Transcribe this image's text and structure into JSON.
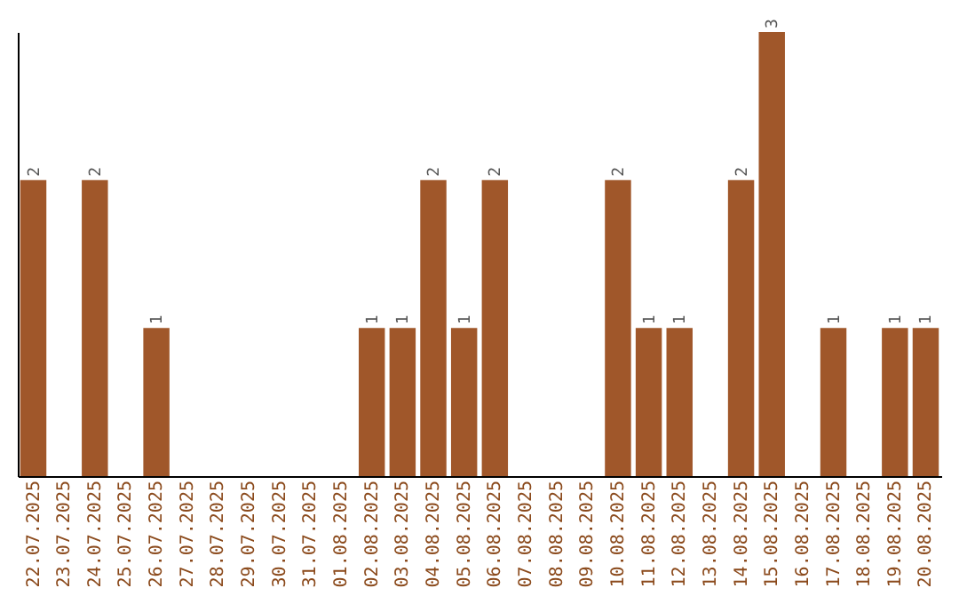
{
  "chart_data": {
    "type": "bar",
    "categories": [
      "22.07.2025",
      "23.07.2025",
      "24.07.2025",
      "25.07.2025",
      "26.07.2025",
      "27.07.2025",
      "28.07.2025",
      "29.07.2025",
      "30.07.2025",
      "31.07.2025",
      "01.08.2025",
      "02.08.2025",
      "03.08.2025",
      "04.08.2025",
      "05.08.2025",
      "06.08.2025",
      "07.08.2025",
      "08.08.2025",
      "09.08.2025",
      "10.08.2025",
      "11.08.2025",
      "12.08.2025",
      "13.08.2025",
      "14.08.2025",
      "15.08.2025",
      "16.08.2025",
      "17.08.2025",
      "18.08.2025",
      "19.08.2025",
      "20.08.2025"
    ],
    "values": [
      2,
      0,
      2,
      0,
      1,
      0,
      0,
      0,
      0,
      0,
      0,
      1,
      1,
      2,
      1,
      2,
      0,
      0,
      0,
      2,
      1,
      1,
      0,
      2,
      3,
      0,
      1,
      0,
      1,
      1
    ],
    "value_labels": [
      "2",
      null,
      "2",
      null,
      "1",
      null,
      null,
      null,
      null,
      null,
      null,
      "1",
      "1",
      "2",
      "1",
      "2",
      null,
      null,
      null,
      "2",
      "1",
      "1",
      null,
      "2",
      "3",
      null,
      "1",
      null,
      "1",
      "1"
    ],
    "color": "#a0572a",
    "tick_labels": "x",
    "grid": false
  }
}
